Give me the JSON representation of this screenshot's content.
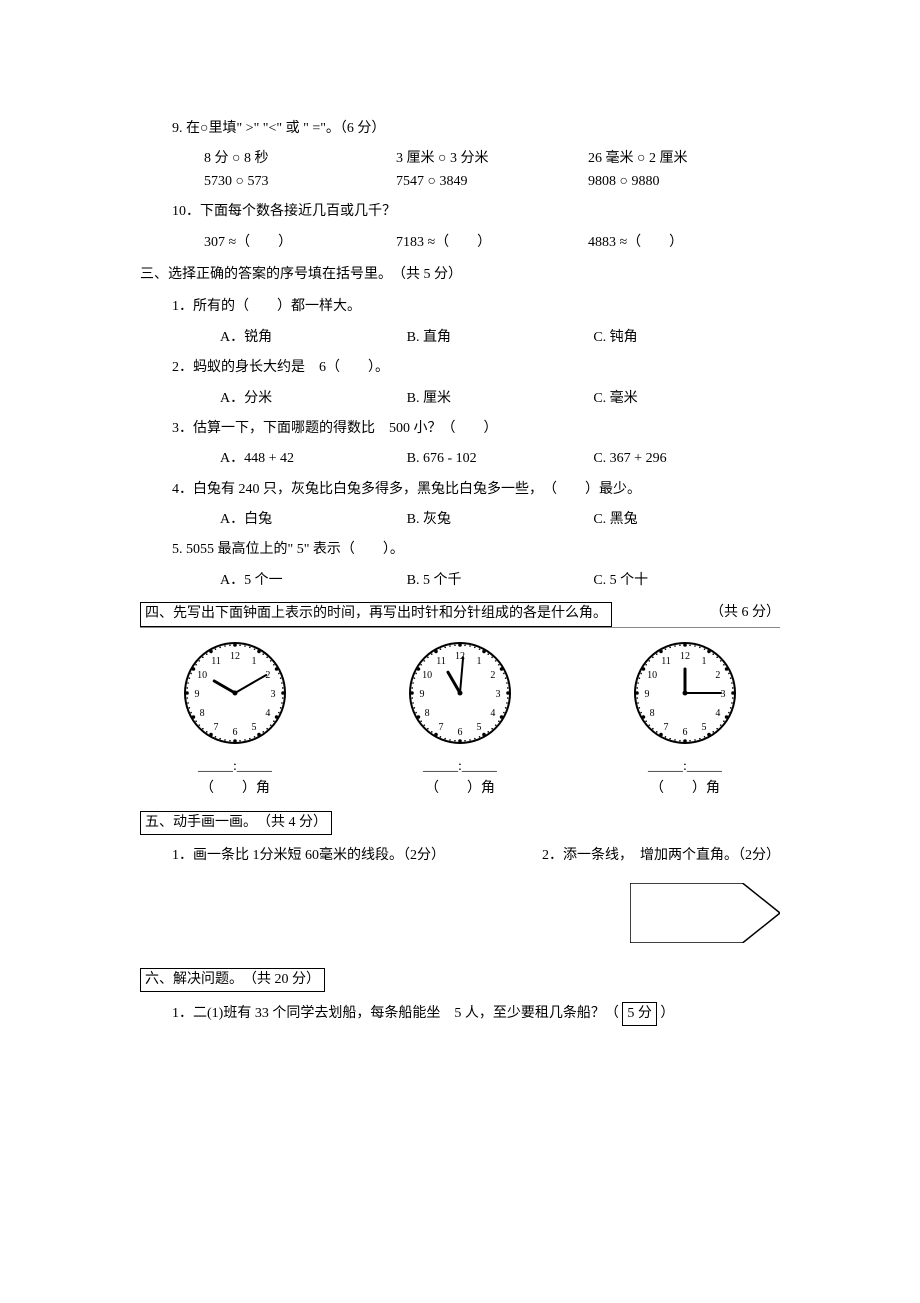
{
  "q9": {
    "prompt": "9. 在○里填\" >\" \"<\" 或 \" =\"。（6 分）",
    "row1": {
      "a": "8 分 ○ 8 秒",
      "b": "3 厘米 ○ 3 分米",
      "c": "26 毫米 ○ 2 厘米"
    },
    "row2": {
      "a": "5730 ○ 573",
      "b": "7547 ○ 3849",
      "c": "9808 ○ 9880"
    }
  },
  "q10": {
    "prompt": "10．下面每个数各接近几百或几千？",
    "a": "307 ≈（　　）",
    "b": "7183 ≈（　　）",
    "c": "4883 ≈（　　）"
  },
  "sec3": {
    "header": "三、选择正确的答案的序号填在括号里。　（共 5 分）",
    "q1": {
      "stem": "1．所有的（　　）都一样大。",
      "a": "A．锐角",
      "b": "B. 直角",
      "c": "C. 钝角"
    },
    "q2": {
      "stem": "2．蚂蚁的身长大约是　6（　　）。",
      "a": "A．分米",
      "b": "B. 厘米",
      "c": "C. 毫米"
    },
    "q3": {
      "stem": "3．估算一下，下面哪题的得数比　500 小？（　　）",
      "a": "A．448 + 42",
      "b": "B. 676 - 102",
      "c": "C. 367 + 296"
    },
    "q4": {
      "stem": "4．白兔有 240 只，灰兔比白兔多得多，黑兔比白兔多一些，　（　　）最少。",
      "a": "A．白兔",
      "b": "B. 灰兔",
      "c": "C. 黑兔"
    },
    "q5": {
      "stem": "5. 5055 最高位上的\" 5\" 表示（　　）。",
      "a": "A．5 个一",
      "b": "B. 5 个千",
      "c": "C. 5 个十"
    }
  },
  "sec4": {
    "header": "四、先写出下面钟面上表示的时间，再写出时针和分针组成的各是什么角。",
    "points": "（共 6 分）",
    "clocks": [
      {
        "hour_angle": -60,
        "minute_angle": 60,
        "time_label": "_____:_____",
        "angle_label": "（　　）角"
      },
      {
        "hour_angle": -30,
        "minute_angle": 5,
        "time_label": "_____:_____",
        "angle_label": "（　　）角"
      },
      {
        "hour_angle": 0,
        "minute_angle": 90,
        "time_label": "_____:_____",
        "angle_label": "（　　）角"
      }
    ]
  },
  "sec5": {
    "header": "五、动手画一画。　（共 4 分）",
    "q1": "1．画一条比 1分米短 60毫米的线段。（2分）",
    "q2": "2．添一条线，　增加两个直角。（2分）",
    "pentagon": {
      "w": 150,
      "h": 60
    }
  },
  "sec6": {
    "header": "六、解决问题。　（共 20 分）",
    "q1_a": "1．二(1)班有 33 个同学去划船，每条船能坐　5 人，至少要租几条船？（",
    "q1_b": "5 分",
    "q1_c": "）"
  }
}
